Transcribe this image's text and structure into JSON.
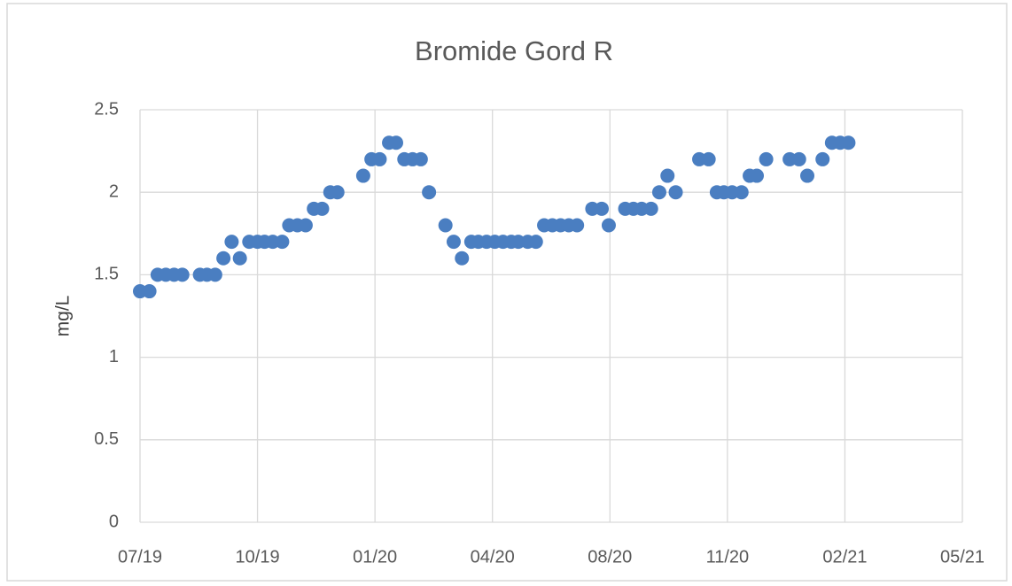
{
  "chart_data": {
    "type": "scatter",
    "title": "Bromide Gord R",
    "y_label": "mg/L",
    "color": "#4a7ec1",
    "grid": true,
    "xlim": [
      43647,
      44347
    ],
    "xticks": [
      {
        "value": 43647,
        "label": "07/19"
      },
      {
        "value": 43747,
        "label": "10/19"
      },
      {
        "value": 43847,
        "label": "01/20"
      },
      {
        "value": 43947,
        "label": "04/20"
      },
      {
        "value": 44047,
        "label": "08/20"
      },
      {
        "value": 44147,
        "label": "11/20"
      },
      {
        "value": 44247,
        "label": "02/21"
      },
      {
        "value": 44347,
        "label": "05/21"
      }
    ],
    "ylim": [
      0,
      2.5
    ],
    "yticks": [
      0,
      0.5,
      1,
      1.5,
      2,
      2.5
    ],
    "x": [
      43647,
      43655,
      43662,
      43669,
      43676,
      43683,
      43698,
      43704,
      43711,
      43718,
      43725,
      43732,
      43740,
      43747,
      43753,
      43760,
      43768,
      43774,
      43781,
      43788,
      43795,
      43802,
      43809,
      43815,
      43837,
      43844,
      43851,
      43859,
      43865,
      43872,
      43879,
      43886,
      43893,
      43907,
      43914,
      43921,
      43929,
      43935,
      43942,
      43949,
      43956,
      43963,
      43969,
      43977,
      43984,
      43991,
      43998,
      44005,
      44012,
      44019,
      44032,
      44040,
      44046,
      44060,
      44067,
      44074,
      44082,
      44089,
      44096,
      44103,
      44123,
      44131,
      44138,
      44144,
      44151,
      44159,
      44166,
      44172,
      44180,
      44200,
      44208,
      44215,
      44228,
      44236,
      44243,
      44250
    ],
    "values": [
      1.4,
      1.4,
      1.5,
      1.5,
      1.5,
      1.5,
      1.5,
      1.5,
      1.5,
      1.6,
      1.7,
      1.6,
      1.7,
      1.7,
      1.7,
      1.7,
      1.7,
      1.8,
      1.8,
      1.8,
      1.9,
      1.9,
      2.0,
      2.0,
      2.1,
      2.2,
      2.2,
      2.3,
      2.3,
      2.2,
      2.2,
      2.2,
      2.0,
      1.8,
      1.7,
      1.6,
      1.7,
      1.7,
      1.7,
      1.7,
      1.7,
      1.7,
      1.7,
      1.7,
      1.7,
      1.8,
      1.8,
      1.8,
      1.8,
      1.8,
      1.9,
      1.9,
      1.8,
      1.9,
      1.9,
      1.9,
      1.9,
      2.0,
      2.1,
      2.0,
      2.2,
      2.2,
      2.0,
      2.0,
      2.0,
      2.0,
      2.1,
      2.1,
      2.2,
      2.2,
      2.2,
      2.1,
      2.2,
      2.3,
      2.3,
      2.3
    ]
  }
}
